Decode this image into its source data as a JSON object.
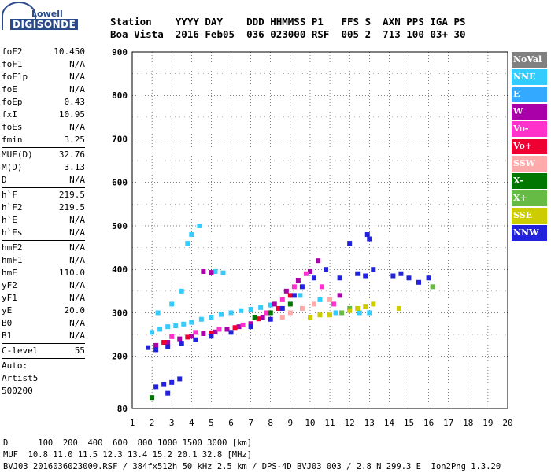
{
  "logo": {
    "line1": "Lowell",
    "line2": "DIGISONDE"
  },
  "header": {
    "labels": "Station    YYYY DAY    DDD HHMMSS P1   FFS S  AXN PPS IGA PS",
    "values": "Boa Vista  2016 Feb05  036 023000 RSF  005 2  713 100 03+ 30"
  },
  "params": [
    {
      "k": "foF2",
      "v": "10.450"
    },
    {
      "k": "foF1",
      "v": "N/A"
    },
    {
      "k": "foF1p",
      "v": "N/A"
    },
    {
      "k": "foE",
      "v": "N/A"
    },
    {
      "k": "foEp",
      "v": "0.43"
    },
    {
      "k": "fxI",
      "v": "10.95"
    },
    {
      "k": "foEs",
      "v": "N/A"
    },
    {
      "k": "fmin",
      "v": "3.25"
    },
    {
      "sep": true
    },
    {
      "k": "MUF(D)",
      "v": "32.76"
    },
    {
      "k": "M(D)",
      "v": "3.13"
    },
    {
      "k": "D",
      "v": "N/A"
    },
    {
      "sep": true
    },
    {
      "k": "h`F",
      "v": "219.5"
    },
    {
      "k": "h`F2",
      "v": "219.5"
    },
    {
      "k": "h`E",
      "v": "N/A"
    },
    {
      "k": "h`Es",
      "v": "N/A"
    },
    {
      "sep": true
    },
    {
      "k": "hmF2",
      "v": "N/A"
    },
    {
      "k": "hmF1",
      "v": "N/A"
    },
    {
      "k": "hmE",
      "v": "110.0"
    },
    {
      "k": "yF2",
      "v": "N/A"
    },
    {
      "k": "yF1",
      "v": "N/A"
    },
    {
      "k": "yE",
      "v": "20.0"
    },
    {
      "k": "B0",
      "v": "N/A"
    },
    {
      "k": "B1",
      "v": "N/A"
    },
    {
      "sep": true
    },
    {
      "k": "C-level",
      "v": "55"
    },
    {
      "sep": true
    },
    {
      "t": "Auto:"
    },
    {
      "t": "Artist5"
    },
    {
      "t": "500200"
    }
  ],
  "footer": {
    "line1": "D      100  200  400  600  800 1000 1500 3000 [km]",
    "line2": "MUF  10.8 11.0 11.5 12.3 13.4 15.2 20.1 32.8 [MHz]",
    "line3": "BVJ03_2016036023000.RSF / 384fx512h 50 kHz 2.5 km / DPS-4D BVJ03 003 / 2.8 N 299.3 E  Ion2Png 1.3.20"
  },
  "legend": [
    {
      "name": "NoVal",
      "color": "#808080"
    },
    {
      "name": "NNE",
      "color": "#33ccff"
    },
    {
      "name": "E",
      "color": "#33aaff"
    },
    {
      "name": "W",
      "color": "#aa00aa"
    },
    {
      "name": "Vo-",
      "color": "#ff33cc"
    },
    {
      "name": "Vo+",
      "color": "#ee0033"
    },
    {
      "name": "SSW",
      "color": "#ffaaaa"
    },
    {
      "name": "X-",
      "color": "#007700"
    },
    {
      "name": "X+",
      "color": "#66bb44"
    },
    {
      "name": "SSE",
      "color": "#cccc00"
    },
    {
      "name": "NNW",
      "color": "#2222dd"
    }
  ],
  "chart_data": {
    "type": "scatter",
    "title": "",
    "xlabel": "",
    "ylabel": "",
    "xlim": [
      1,
      20
    ],
    "ylim": [
      80,
      900
    ],
    "xticks": [
      1,
      2,
      3,
      4,
      5,
      6,
      7,
      8,
      9,
      10,
      11,
      12,
      13,
      14,
      15,
      16,
      17,
      18,
      19,
      20
    ],
    "yticks": [
      80,
      200,
      300,
      400,
      500,
      600,
      700,
      800,
      900
    ],
    "grid": true,
    "series": [
      {
        "name": "NNE",
        "color": "#33ccff",
        "points": [
          [
            2.0,
            255
          ],
          [
            2.4,
            262
          ],
          [
            2.8,
            268
          ],
          [
            3.2,
            270
          ],
          [
            3.6,
            274
          ],
          [
            4.0,
            278
          ],
          [
            4.5,
            285
          ],
          [
            5.0,
            290
          ],
          [
            5.5,
            296
          ],
          [
            6.0,
            300
          ],
          [
            6.5,
            305
          ],
          [
            7.0,
            308
          ],
          [
            7.5,
            312
          ],
          [
            8.0,
            318
          ],
          [
            4.0,
            480
          ],
          [
            4.4,
            500
          ],
          [
            3.8,
            460
          ],
          [
            5.2,
            395
          ],
          [
            5.6,
            392
          ],
          [
            9.5,
            340
          ],
          [
            10.5,
            330
          ],
          [
            11.3,
            300
          ],
          [
            12.5,
            300
          ],
          [
            13.0,
            300
          ],
          [
            2.3,
            300
          ],
          [
            3.0,
            320
          ],
          [
            3.5,
            350
          ]
        ]
      },
      {
        "name": "W",
        "color": "#aa00aa",
        "points": [
          [
            2.2,
            225
          ],
          [
            2.8,
            232
          ],
          [
            3.4,
            240
          ],
          [
            4.0,
            246
          ],
          [
            4.6,
            252
          ],
          [
            5.2,
            256
          ],
          [
            5.8,
            262
          ],
          [
            6.4,
            268
          ],
          [
            7.0,
            275
          ],
          [
            7.6,
            290
          ],
          [
            8.2,
            320
          ],
          [
            8.8,
            350
          ],
          [
            9.4,
            375
          ],
          [
            10.0,
            395
          ],
          [
            10.4,
            420
          ],
          [
            4.6,
            395
          ],
          [
            5.0,
            393
          ],
          [
            11.5,
            340
          ]
        ]
      },
      {
        "name": "Vo-",
        "color": "#ff33cc",
        "points": [
          [
            3.0,
            245
          ],
          [
            4.2,
            255
          ],
          [
            5.4,
            262
          ],
          [
            6.6,
            272
          ],
          [
            7.8,
            300
          ],
          [
            8.6,
            330
          ],
          [
            9.2,
            360
          ],
          [
            9.8,
            390
          ],
          [
            10.6,
            360
          ],
          [
            11.2,
            320
          ]
        ]
      },
      {
        "name": "Vo+",
        "color": "#ee0033",
        "points": [
          [
            2.6,
            232
          ],
          [
            3.8,
            244
          ],
          [
            5.0,
            254
          ],
          [
            6.2,
            266
          ],
          [
            7.4,
            286
          ],
          [
            8.4,
            310
          ],
          [
            9.0,
            340
          ]
        ]
      },
      {
        "name": "SSW",
        "color": "#ffaaaa",
        "points": [
          [
            8.6,
            290
          ],
          [
            9.0,
            300
          ],
          [
            9.6,
            310
          ],
          [
            10.2,
            320
          ],
          [
            11.0,
            330
          ]
        ]
      },
      {
        "name": "X-",
        "color": "#007700",
        "points": [
          [
            2.0,
            105
          ],
          [
            7.2,
            290
          ],
          [
            8.0,
            300
          ],
          [
            9.0,
            320
          ]
        ]
      },
      {
        "name": "X+",
        "color": "#66bb44",
        "points": [
          [
            11.6,
            300
          ],
          [
            12.0,
            310
          ],
          [
            16.2,
            360
          ]
        ]
      },
      {
        "name": "SSE",
        "color": "#cccc00",
        "points": [
          [
            10.0,
            290
          ],
          [
            10.5,
            295
          ],
          [
            11.0,
            295
          ],
          [
            12.0,
            305
          ],
          [
            12.4,
            310
          ],
          [
            12.8,
            315
          ],
          [
            13.2,
            320
          ],
          [
            14.5,
            310
          ]
        ]
      },
      {
        "name": "NNW",
        "color": "#2222dd",
        "points": [
          [
            1.8,
            220
          ],
          [
            2.2,
            215
          ],
          [
            2.8,
            222
          ],
          [
            3.5,
            230
          ],
          [
            4.2,
            238
          ],
          [
            5.0,
            246
          ],
          [
            6.0,
            255
          ],
          [
            7.0,
            268
          ],
          [
            8.0,
            285
          ],
          [
            8.6,
            310
          ],
          [
            9.2,
            340
          ],
          [
            9.6,
            360
          ],
          [
            10.2,
            380
          ],
          [
            10.8,
            400
          ],
          [
            11.5,
            380
          ],
          [
            12.4,
            390
          ],
          [
            12.8,
            385
          ],
          [
            13.2,
            400
          ],
          [
            13.0,
            470
          ],
          [
            14.2,
            385
          ],
          [
            14.6,
            390
          ],
          [
            15.0,
            380
          ],
          [
            15.5,
            370
          ],
          [
            16.0,
            380
          ],
          [
            2.2,
            130
          ],
          [
            2.6,
            135
          ],
          [
            3.0,
            140
          ],
          [
            3.4,
            148
          ],
          [
            2.8,
            115
          ],
          [
            12.0,
            460
          ],
          [
            12.9,
            480
          ]
        ]
      }
    ]
  }
}
